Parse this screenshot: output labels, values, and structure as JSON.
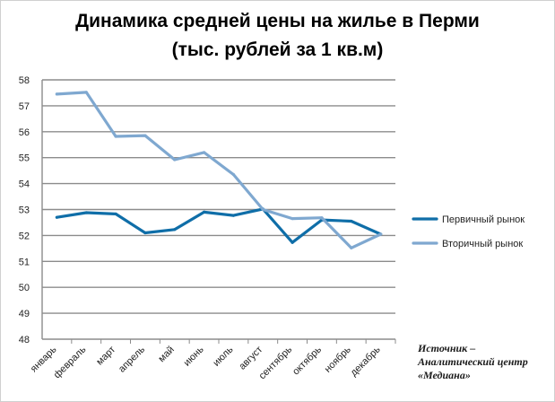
{
  "chart_data": {
    "type": "line",
    "title": "Динамика средней цены на жилье в Перми",
    "subtitle": "(тыс. рублей за 1 кв.м)",
    "xlabel": "",
    "ylabel": "",
    "ylim": [
      48,
      58
    ],
    "yticks": [
      48,
      49,
      50,
      51,
      52,
      53,
      54,
      55,
      56,
      57,
      58
    ],
    "grid": true,
    "legend_position": "right",
    "categories": [
      "январь",
      "февраль",
      "март",
      "апрель",
      "май",
      "июнь",
      "июль",
      "август",
      "сентябрь",
      "октябрь",
      "ноябрь",
      "декабрь"
    ],
    "series": [
      {
        "name": "Первичный рынок",
        "color": "#0f6ea8",
        "values": [
          52.7,
          52.88,
          52.83,
          52.1,
          52.23,
          52.9,
          52.77,
          53.02,
          51.73,
          52.6,
          52.55,
          52.05
        ]
      },
      {
        "name": "Вторичный рынок",
        "color": "#7fa8d0",
        "values": [
          57.45,
          57.52,
          55.82,
          55.85,
          54.92,
          55.2,
          54.35,
          53.0,
          52.65,
          52.68,
          51.52,
          52.05
        ]
      }
    ]
  },
  "source": {
    "line1": "Источник –",
    "line2": "Аналитический центр",
    "line3": "«Медиана»"
  }
}
